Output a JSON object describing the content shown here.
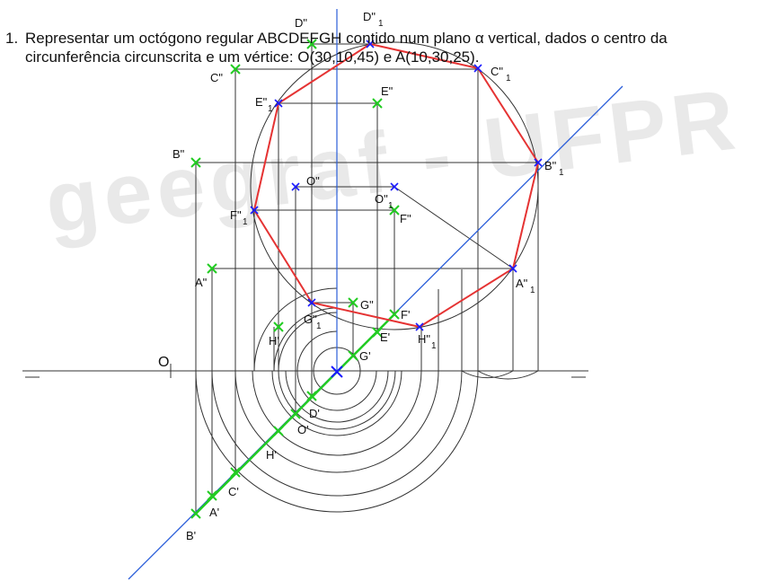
{
  "problem": {
    "number": "1.",
    "line1": "Representar um octógono regular ABCDEFGH contido num plano α vertical, dados o centro da",
    "line2": "circunferência circunscrita e um vértice: O(30,10,45) e A(10,30,25)."
  },
  "watermark": "geegraf - UFPR",
  "axis_label": "O",
  "colors": {
    "given_points": "#22cc22",
    "rotated_points": "#1a1aff",
    "octagon": "#e53333",
    "plane_trace": "#2b5ed9",
    "construction": "#333333"
  },
  "labels": {
    "Dpp": "D\"",
    "D1": "D\"",
    "D1s": "1",
    "Cpp": "C\"",
    "C1": "C\"",
    "C1s": "1",
    "E1": "E\"",
    "E1s": "1",
    "Epp": "E\"",
    "Bpp": "B\"",
    "B1": "B\"",
    "B1s": "1",
    "Opp": "O\"",
    "O1": "O\"",
    "O1s": "1",
    "Fpp": "F\"",
    "F1": "F\"",
    "F1s": "1",
    "App": "A\"",
    "A1": "A\"",
    "A1s": "1",
    "G1": "G\"",
    "G1s": "1",
    "Gpp": "G\"",
    "Fp": "F'",
    "Hp": "H'",
    "Ep": "E'",
    "H1": "H\"",
    "H1s": "1",
    "Gp": "G'",
    "Dp": "D'",
    "Op": "O'",
    "Hp2": "H'",
    "Cp": "C'",
    "Ap": "A'",
    "Bp": "B'"
  }
}
